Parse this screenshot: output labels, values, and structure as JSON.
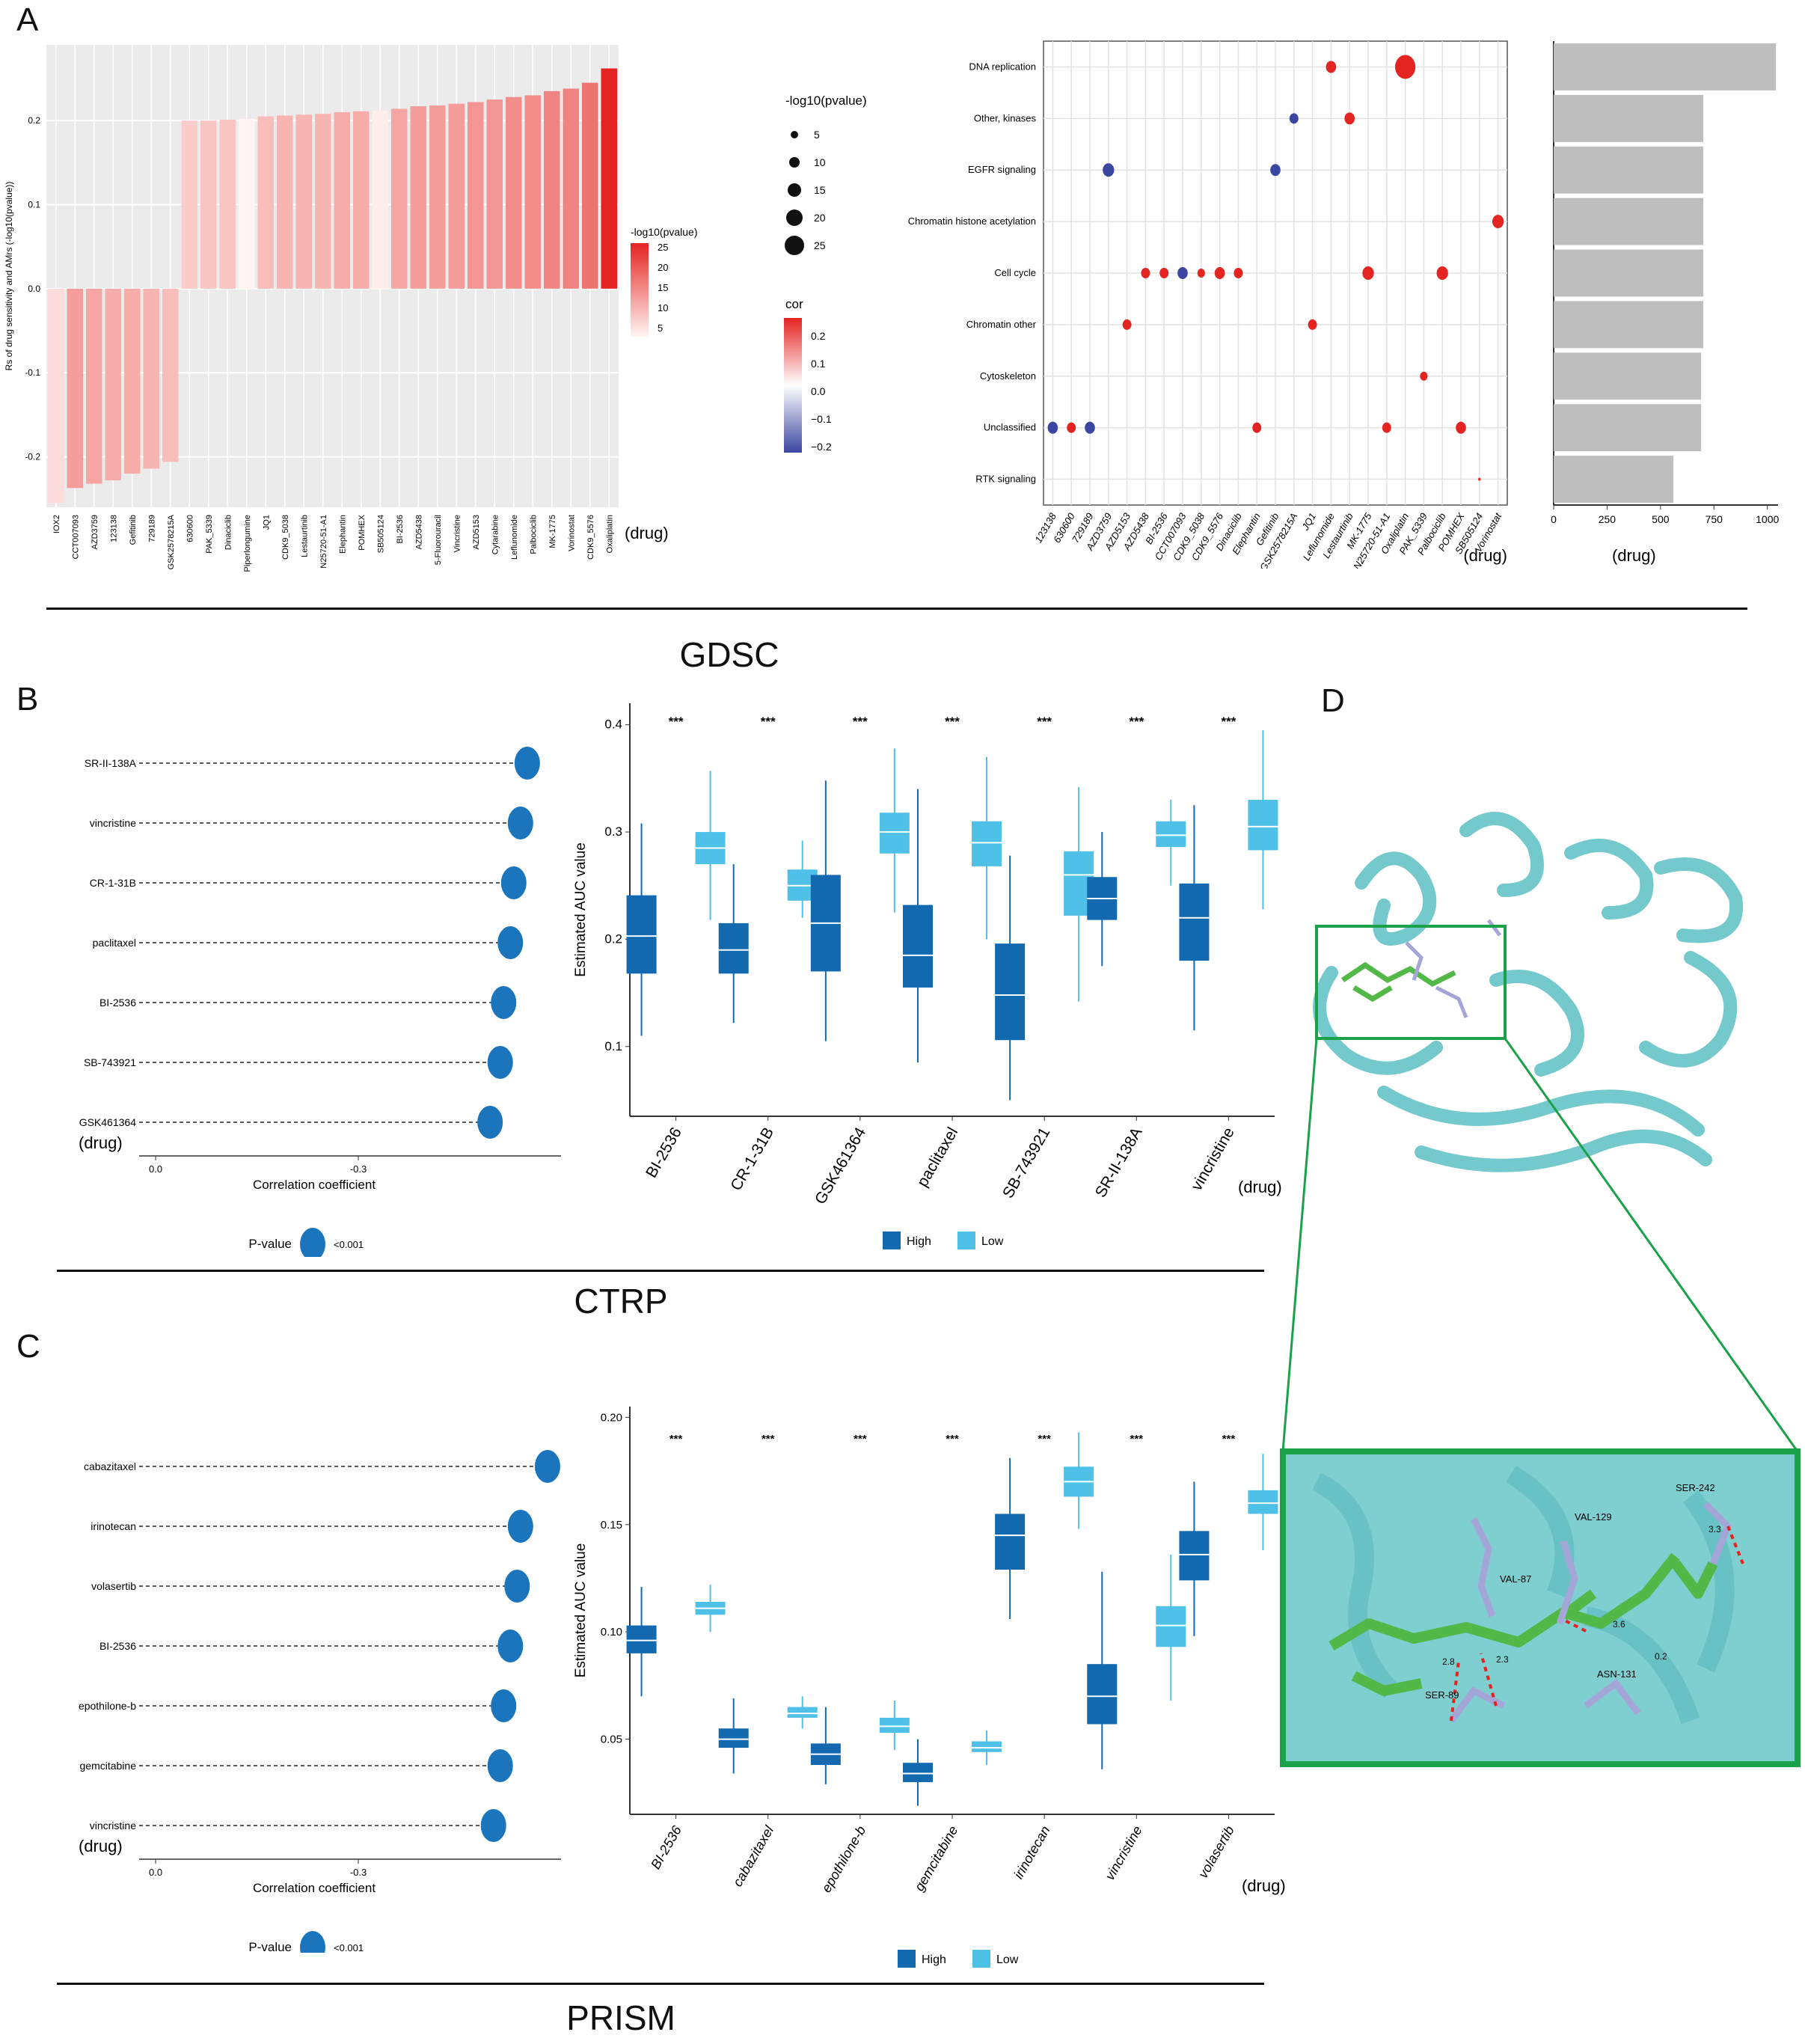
{
  "labels": {
    "panelA": "A",
    "panelB": "B",
    "panelC": "C",
    "panelD": "D",
    "gdsc": "GDSC",
    "ctrp": "CTRP",
    "prism": "PRISM"
  },
  "colors": {
    "panel_bg": "#ebebeb",
    "grid": "#ffffff",
    "high_red": "#e42421",
    "low_fill": "#fdeeec",
    "neg_blue": "#3b46a0",
    "lolli": "#1b75bc",
    "box_high": "#1269b0",
    "box_low": "#4fc0e8",
    "grey_bar": "#bebebe",
    "protein": "#74c9cc",
    "zoom_box": "#1aa14a",
    "ligand": "#52b848",
    "residue": "#a4a6d8"
  },
  "a_bar": {
    "ylabel": "Rs of drug sensitivity and AMrs   (-log10(pvalue))",
    "xlabel": "(drug)",
    "ylim": [
      -0.26,
      0.29
    ],
    "yticks": [
      -0.2,
      -0.1,
      0.0,
      0.1,
      0.2
    ],
    "ytick_labels": [
      "-0.2",
      "-0.1",
      "0.0",
      "0.1",
      "0.2"
    ],
    "legend_title": "-log10(pvalue)",
    "legend_ticks": [
      "25",
      "20",
      "15",
      "10",
      "5"
    ],
    "drugs": [
      "IOX2",
      "CCT007093",
      "AZD3759",
      "123138",
      "Gefitinib",
      "729189",
      "GSK2578215A",
      "630600",
      "PAK_5339",
      "Dinaciclib",
      "Piperlongumine",
      "JQ1",
      "CDK9_5038",
      "Lestaurtinib",
      "N25720-51-A1",
      "Elephantin",
      "POMHEX",
      "SB505124",
      "BI-2536",
      "AZD5438",
      "5-Fluorouracil",
      "Vincristine",
      "AZD5153",
      "Cytarabine",
      "Leflunomide",
      "Palbociclib",
      "MK-1775",
      "Vorinostat",
      "CDK9_5576",
      "Oxaliplatin"
    ],
    "values": [
      -0.255,
      -0.237,
      -0.232,
      -0.228,
      -0.22,
      -0.214,
      -0.206,
      0.2,
      0.2,
      0.201,
      0.202,
      0.205,
      0.206,
      0.207,
      0.208,
      0.21,
      0.211,
      0.212,
      0.214,
      0.217,
      0.218,
      0.22,
      0.222,
      0.225,
      0.228,
      0.23,
      0.235,
      0.238,
      0.245,
      0.262
    ],
    "pvals": [
      4,
      12,
      11,
      10,
      10,
      9,
      8,
      6,
      7,
      7,
      1,
      8,
      9,
      9,
      9,
      10,
      10,
      2,
      11,
      12,
      12,
      12,
      13,
      13,
      14,
      14,
      15,
      15,
      17,
      27
    ]
  },
  "a_legends": {
    "size_title": "-log10(pvalue)",
    "size_labels": [
      "5",
      "10",
      "15",
      "20",
      "25"
    ],
    "cor_title": "cor",
    "cor_labels": [
      "0.2",
      "0.1",
      "0.0",
      "−0.1",
      "−0.2"
    ]
  },
  "a_dot": {
    "categories": [
      "DNA replication",
      "Other, kinases",
      "EGFR signaling",
      "Chromatin histone acetylation",
      "Cell cycle",
      "Chromatin other",
      "Cytoskeleton",
      "Unclassified",
      "RTK signaling"
    ],
    "drugs": [
      "123138",
      "630600",
      "729189",
      "AZD3759",
      "AZD5153",
      "AZD5438",
      "BI-2536",
      "CCT007093",
      "CDK9_5038",
      "CDK9_5576",
      "Dinaciclib",
      "Elephantin",
      "Gefitinib",
      "GSK2578215A",
      "JQ1",
      "Leflunomide",
      "Lestaurtinib",
      "MK-1775",
      "N25720-51-A1",
      "Oxaliplatin",
      "PAK_5339",
      "Palbociclib",
      "POMHEX",
      "SB505124",
      "Vorinostat"
    ],
    "xlabel": "(drug)",
    "points": [
      {
        "drug": "123138",
        "cat": "Unclassified",
        "size": 8,
        "sign": "neg"
      },
      {
        "drug": "630600",
        "cat": "Unclassified",
        "size": 7,
        "sign": "pos"
      },
      {
        "drug": "729189",
        "cat": "Unclassified",
        "size": 8,
        "sign": "neg"
      },
      {
        "drug": "AZD3759",
        "cat": "EGFR signaling",
        "size": 9,
        "sign": "neg"
      },
      {
        "drug": "AZD5153",
        "cat": "Chromatin other",
        "size": 7,
        "sign": "pos"
      },
      {
        "drug": "AZD5438",
        "cat": "Cell cycle",
        "size": 7,
        "sign": "pos"
      },
      {
        "drug": "BI-2536",
        "cat": "Cell cycle",
        "size": 7,
        "sign": "pos"
      },
      {
        "drug": "CCT007093",
        "cat": "Cell cycle",
        "size": 8,
        "sign": "neg"
      },
      {
        "drug": "CDK9_5038",
        "cat": "Cell cycle",
        "size": 6,
        "sign": "pos"
      },
      {
        "drug": "CDK9_5576",
        "cat": "Cell cycle",
        "size": 8,
        "sign": "pos"
      },
      {
        "drug": "Dinaciclib",
        "cat": "Cell cycle",
        "size": 7,
        "sign": "pos"
      },
      {
        "drug": "Elephantin",
        "cat": "Unclassified",
        "size": 7,
        "sign": "pos"
      },
      {
        "drug": "Gefitinib",
        "cat": "EGFR signaling",
        "size": 8,
        "sign": "neg"
      },
      {
        "drug": "GSK2578215A",
        "cat": "Other, kinases",
        "size": 7,
        "sign": "neg"
      },
      {
        "drug": "JQ1",
        "cat": "Chromatin other",
        "size": 7,
        "sign": "pos"
      },
      {
        "drug": "Leflunomide",
        "cat": "DNA replication",
        "size": 8,
        "sign": "pos"
      },
      {
        "drug": "Lestaurtinib",
        "cat": "Other, kinases",
        "size": 8,
        "sign": "pos"
      },
      {
        "drug": "MK-1775",
        "cat": "Cell cycle",
        "size": 9,
        "sign": "pos"
      },
      {
        "drug": "N25720-51-A1",
        "cat": "Unclassified",
        "size": 7,
        "sign": "pos"
      },
      {
        "drug": "Oxaliplatin",
        "cat": "DNA replication",
        "size": 16,
        "sign": "pos"
      },
      {
        "drug": "PAK_5339",
        "cat": "Cytoskeleton",
        "size": 6,
        "sign": "pos"
      },
      {
        "drug": "Palbociclib",
        "cat": "Cell cycle",
        "size": 9,
        "sign": "pos"
      },
      {
        "drug": "POMHEX",
        "cat": "Unclassified",
        "size": 8,
        "sign": "pos"
      },
      {
        "drug": "SB505124",
        "cat": "RTK signaling",
        "size": 2,
        "sign": "pos"
      },
      {
        "drug": "Vorinostat",
        "cat": "Chromatin histone acetylation",
        "size": 9,
        "sign": "pos"
      }
    ]
  },
  "a_grey": {
    "xlim": [
      0,
      1050
    ],
    "xticks": [
      0,
      250,
      500,
      750,
      1000
    ],
    "xtick_labels": [
      "0",
      "250",
      "500",
      "750",
      "1000"
    ],
    "xlabel": "(drug)",
    "values": [
      1040,
      700,
      700,
      700,
      700,
      700,
      690,
      690,
      560
    ]
  },
  "b_lolli": {
    "drugs": [
      "SR-II-138A",
      "vincristine",
      "CR-1-31B",
      "paclitaxel",
      "BI-2536",
      "SB-743921",
      "GSK461364"
    ],
    "values": [
      -0.55,
      -0.54,
      -0.53,
      -0.525,
      -0.515,
      -0.51,
      -0.495
    ],
    "xlim": [
      0.02,
      -0.6
    ],
    "xticks": [
      0.0,
      -0.3
    ],
    "xtick_labels": [
      "0.0",
      "-0.3"
    ],
    "xlabel": "Correlation coefficient",
    "ylabel": "(drug)",
    "legend_title": "P-value",
    "legend_value": "<0.001"
  },
  "b_box": {
    "ylabel": "Estimated AUC value",
    "xlabel": "(drug)",
    "ylim": [
      0.035,
      0.42
    ],
    "yticks": [
      0.1,
      0.2,
      0.3,
      0.4
    ],
    "ytick_labels": [
      "0.1",
      "0.2",
      "0.3",
      "0.4"
    ],
    "drugs": [
      "BI-2536",
      "CR-1-31B",
      "GSK461364",
      "paclitaxel",
      "SB-743921",
      "SR-II-138A",
      "vincristine"
    ],
    "sig": [
      "***",
      "***",
      "***",
      "***",
      "***",
      "***",
      "***"
    ],
    "legend": [
      "High",
      "Low"
    ],
    "high": [
      [
        0.11,
        0.168,
        0.203,
        0.241,
        0.308
      ],
      [
        0.122,
        0.168,
        0.19,
        0.215,
        0.27
      ],
      [
        0.105,
        0.17,
        0.215,
        0.26,
        0.348
      ],
      [
        0.085,
        0.155,
        0.185,
        0.232,
        0.34
      ],
      [
        0.05,
        0.106,
        0.148,
        0.196,
        0.278
      ],
      [
        0.175,
        0.218,
        0.238,
        0.258,
        0.3
      ],
      [
        0.115,
        0.18,
        0.22,
        0.252,
        0.325
      ]
    ],
    "low": [
      [
        0.218,
        0.27,
        0.285,
        0.3,
        0.357
      ],
      [
        0.22,
        0.236,
        0.25,
        0.265,
        0.292
      ],
      [
        0.225,
        0.28,
        0.3,
        0.318,
        0.378
      ],
      [
        0.2,
        0.268,
        0.29,
        0.31,
        0.37
      ],
      [
        0.142,
        0.222,
        0.26,
        0.282,
        0.342
      ],
      [
        0.25,
        0.286,
        0.297,
        0.31,
        0.33
      ],
      [
        0.228,
        0.283,
        0.305,
        0.33,
        0.395
      ]
    ]
  },
  "c_lolli": {
    "drugs": [
      "cabazitaxel",
      "irinotecan",
      "volasertib",
      "BI-2536",
      "epothilone-b",
      "gemcitabine",
      "vincristine"
    ],
    "values": [
      -0.58,
      -0.54,
      -0.535,
      -0.525,
      -0.515,
      -0.51,
      -0.5
    ],
    "xlim": [
      0.02,
      -0.6
    ],
    "xticks": [
      0.0,
      -0.3
    ],
    "xtick_labels": [
      "0.0",
      "-0.3"
    ],
    "xlabel": "Correlation coefficient",
    "ylabel": "(drug)",
    "legend_title": "P-value",
    "legend_value": "<0.001"
  },
  "c_box": {
    "ylabel": "Estimated AUC value",
    "xlabel": "(drug)",
    "ylim": [
      0.015,
      0.205
    ],
    "yticks": [
      0.05,
      0.1,
      0.15,
      0.2
    ],
    "ytick_labels": [
      "0.05",
      "0.10",
      "0.15",
      "0.20"
    ],
    "drugs": [
      "BI-2536",
      "cabazitaxel",
      "epothilone-b",
      "gemcitabine",
      "irinotecan",
      "vincristine",
      "volasertib"
    ],
    "sig": [
      "***",
      "***",
      "***",
      "***",
      "***",
      "***",
      "***"
    ],
    "legend": [
      "High",
      "Low"
    ],
    "high": [
      [
        0.07,
        0.09,
        0.096,
        0.103,
        0.121
      ],
      [
        0.034,
        0.046,
        0.05,
        0.055,
        0.069
      ],
      [
        0.029,
        0.038,
        0.043,
        0.048,
        0.065
      ],
      [
        0.019,
        0.03,
        0.034,
        0.039,
        0.05
      ],
      [
        0.106,
        0.129,
        0.145,
        0.155,
        0.181
      ],
      [
        0.036,
        0.057,
        0.07,
        0.085,
        0.128
      ],
      [
        0.098,
        0.124,
        0.136,
        0.147,
        0.17
      ]
    ],
    "low": [
      [
        0.1,
        0.108,
        0.111,
        0.114,
        0.122
      ],
      [
        0.055,
        0.06,
        0.062,
        0.065,
        0.07
      ],
      [
        0.045,
        0.053,
        0.056,
        0.06,
        0.068
      ],
      [
        0.038,
        0.044,
        0.046,
        0.049,
        0.054
      ],
      [
        0.148,
        0.163,
        0.17,
        0.177,
        0.193
      ],
      [
        0.068,
        0.093,
        0.103,
        0.112,
        0.136
      ],
      [
        0.138,
        0.155,
        0.16,
        0.166,
        0.183
      ]
    ]
  },
  "d_labels": [
    "SER-242",
    "VAL-129",
    "VAL-87",
    "SER-89",
    "ASN-131"
  ],
  "d_dist": [
    "3.3",
    "3.6",
    "0.2",
    "2.8",
    "2.3"
  ]
}
